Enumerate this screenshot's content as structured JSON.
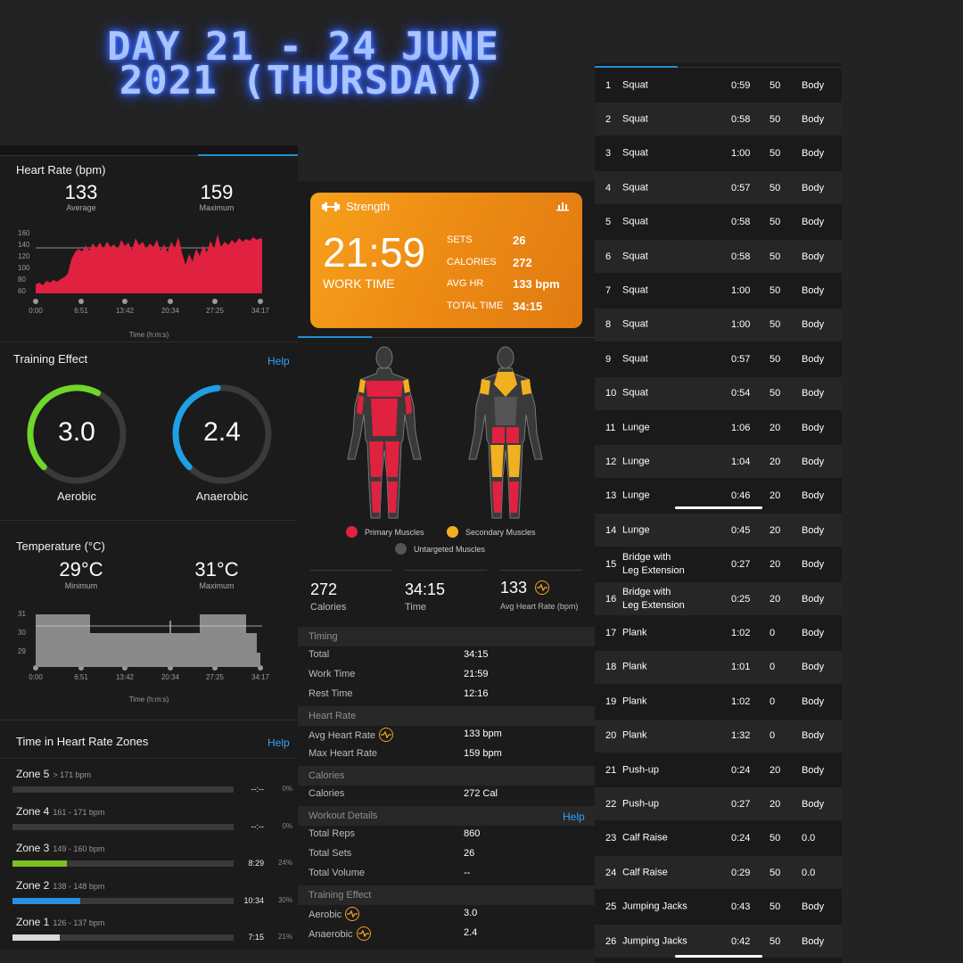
{
  "title": "Day 21 - 24 June 2021 (Thursday)",
  "colors": {
    "accent_blue": "#1f8ed6",
    "hr_red": "#e0213f",
    "aerobic_green": "#6fd62a",
    "anaerobic_blue": "#1ea0e6",
    "zone3": "#7cc11f",
    "zone2": "#2a8fe0",
    "zone1": "#d8d8d8",
    "strength_orange": "#f39a1c"
  },
  "heart_rate": {
    "title": "Heart Rate (bpm)",
    "average": "133",
    "average_label": "Average",
    "maximum": "159",
    "maximum_label": "Maximum",
    "y_ticks": [
      "160",
      "140",
      "120",
      "100",
      "80",
      "60"
    ],
    "x_ticks": [
      "0:00",
      "6:51",
      "13:42",
      "20:34",
      "27:25",
      "34:17"
    ],
    "x_label": "Time (h:m:s)"
  },
  "training_effect": {
    "title": "Training Effect",
    "help": "Help",
    "aerobic": "3.0",
    "aerobic_label": "Aerobic",
    "aerobic_level": 0.6,
    "anaerobic": "2.4",
    "anaerobic_label": "Anaerobic",
    "anaerobic_level": 0.48
  },
  "temperature": {
    "title": "Temperature (°C)",
    "minimum": "29°C",
    "minimum_label": "Minimum",
    "maximum": "31°C",
    "maximum_label": "Maximum",
    "y_ticks": [
      "31",
      "30",
      "29"
    ],
    "x_ticks": [
      "0:00",
      "6:51",
      "13:42",
      "20:34",
      "27:25",
      "34:17"
    ],
    "x_label": "Time (h:m:s)"
  },
  "zones": {
    "title": "Time in Heart Rate Zones",
    "help": "Help",
    "items": [
      {
        "name": "Zone 5",
        "range": "> 171 bpm",
        "time": "--:--",
        "pct": "0%",
        "level": 0
      },
      {
        "name": "Zone 4",
        "range": "161 - 171 bpm",
        "time": "--:--",
        "pct": "0%",
        "level": 0
      },
      {
        "name": "Zone 3",
        "range": "149 - 160 bpm",
        "time": "8:29",
        "pct": "24%",
        "level": 0.24
      },
      {
        "name": "Zone 2",
        "range": "138 - 148 bpm",
        "time": "10:34",
        "pct": "30%",
        "level": 0.3
      },
      {
        "name": "Zone 1",
        "range": "126 - 137 bpm",
        "time": "7:15",
        "pct": "21%",
        "level": 0.21
      }
    ]
  },
  "strength": {
    "label": "Strength",
    "work_time": "21:59",
    "work_time_label": "WORK TIME",
    "sets_k": "SETS",
    "sets_v": "26",
    "calories_k": "CALORIES",
    "calories_v": "272",
    "avghr_k": "AVG HR",
    "avghr_v": "133 bpm",
    "total_k": "TOTAL TIME",
    "total_v": "34:15"
  },
  "muscles": {
    "primary": "Primary Muscles",
    "secondary": "Secondary Muscles",
    "untargeted": "Untargeted Muscles"
  },
  "summary": {
    "calories": "272",
    "calories_label": "Calories",
    "time": "34:15",
    "time_label": "Time",
    "avghr": "133",
    "avghr_label": "Avg Heart Rate (bpm)"
  },
  "details": {
    "timing_hdr": "Timing",
    "total_k": "Total",
    "total_v": "34:15",
    "work_k": "Work Time",
    "work_v": "21:59",
    "rest_k": "Rest Time",
    "rest_v": "12:16",
    "hr_hdr": "Heart Rate",
    "avg_k": "Avg Heart Rate",
    "avg_v": "133 bpm",
    "max_k": "Max Heart Rate",
    "max_v": "159 bpm",
    "cal_hdr": "Calories",
    "cal_k": "Calories",
    "cal_v": "272 Cal",
    "wd_hdr": "Workout Details",
    "wd_help": "Help",
    "reps_k": "Total Reps",
    "reps_v": "860",
    "sets_k": "Total Sets",
    "sets_v": "26",
    "vol_k": "Total Volume",
    "vol_v": "--",
    "te_hdr": "Training Effect",
    "aer_k": "Aerobic",
    "aer_v": "3.0",
    "ana_k": "Anaerobic",
    "ana_v": "2.4"
  },
  "exercises": [
    [
      "1",
      "Squat",
      "0:59",
      "50",
      "Body"
    ],
    [
      "2",
      "Squat",
      "0:58",
      "50",
      "Body"
    ],
    [
      "3",
      "Squat",
      "1:00",
      "50",
      "Body"
    ],
    [
      "4",
      "Squat",
      "0:57",
      "50",
      "Body"
    ],
    [
      "5",
      "Squat",
      "0:58",
      "50",
      "Body"
    ],
    [
      "6",
      "Squat",
      "0:58",
      "50",
      "Body"
    ],
    [
      "7",
      "Squat",
      "1:00",
      "50",
      "Body"
    ],
    [
      "8",
      "Squat",
      "1:00",
      "50",
      "Body"
    ],
    [
      "9",
      "Squat",
      "0:57",
      "50",
      "Body"
    ],
    [
      "10",
      "Squat",
      "0:54",
      "50",
      "Body"
    ],
    [
      "11",
      "Lunge",
      "1:06",
      "20",
      "Body"
    ],
    [
      "12",
      "Lunge",
      "1:04",
      "20",
      "Body"
    ],
    [
      "13",
      "Lunge",
      "0:46",
      "20",
      "Body"
    ],
    [
      "14",
      "Lunge",
      "0:45",
      "20",
      "Body"
    ],
    [
      "15",
      "Bridge with\nLeg Extension",
      "0:27",
      "20",
      "Body"
    ],
    [
      "16",
      "Bridge with\nLeg Extension",
      "0:25",
      "20",
      "Body"
    ],
    [
      "17",
      "Plank",
      "1:02",
      "0",
      "Body"
    ],
    [
      "18",
      "Plank",
      "1:01",
      "0",
      "Body"
    ],
    [
      "19",
      "Plank",
      "1:02",
      "0",
      "Body"
    ],
    [
      "20",
      "Plank",
      "1:32",
      "0",
      "Body"
    ],
    [
      "21",
      "Push-up",
      "0:24",
      "20",
      "Body"
    ],
    [
      "22",
      "Push-up",
      "0:27",
      "20",
      "Body"
    ],
    [
      "23",
      "Calf Raise",
      "0:24",
      "50",
      "0.0"
    ],
    [
      "24",
      "Calf Raise",
      "0:29",
      "50",
      "0.0"
    ],
    [
      "25",
      "Jumping Jacks",
      "0:43",
      "50",
      "Body"
    ],
    [
      "26",
      "Jumping Jacks",
      "0:42",
      "50",
      "Body"
    ]
  ]
}
